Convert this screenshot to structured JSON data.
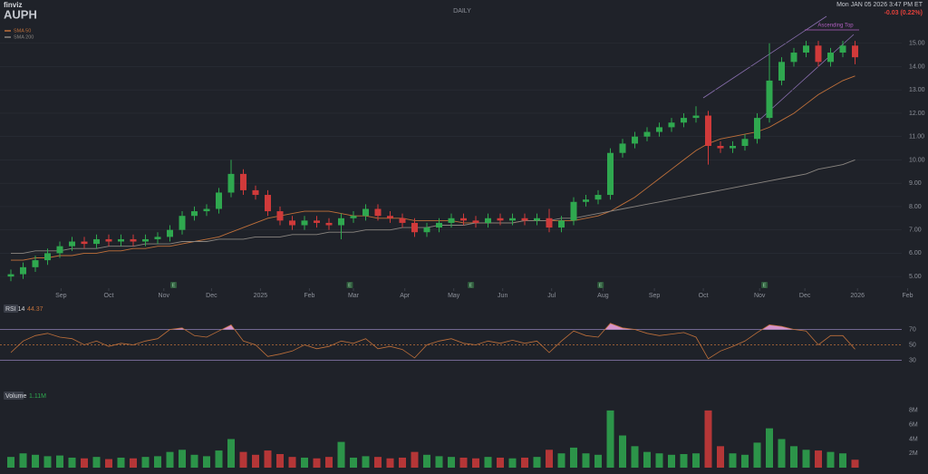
{
  "logo": "finviz",
  "timeframe": "DAILY",
  "datetime": "Mon JAN 05 2026 3:47 PM ET",
  "change": "-0.03 (0.22%)",
  "chart_data": [
    {
      "type": "candlestick",
      "title": "AUPH",
      "annotation": "Ascending Top",
      "up_color": "#2fa84f",
      "down_color": "#d03a3a",
      "grid": true,
      "xlim": [
        -0.5,
        74
      ],
      "xticks": [
        {
          "value": 4.1,
          "label": "Sep"
        },
        {
          "value": 8,
          "label": "Oct"
        },
        {
          "value": 12.5,
          "label": "Nov"
        },
        {
          "value": 16.4,
          "label": "Dec"
        },
        {
          "value": 20.4,
          "label": "2025"
        },
        {
          "value": 24.4,
          "label": "Feb"
        },
        {
          "value": 28,
          "label": "Mar"
        },
        {
          "value": 32.2,
          "label": "Apr"
        },
        {
          "value": 36.2,
          "label": "May"
        },
        {
          "value": 40.2,
          "label": "Jun"
        },
        {
          "value": 44.2,
          "label": "Jul"
        },
        {
          "value": 48.4,
          "label": "Aug"
        },
        {
          "value": 52.6,
          "label": "Sep"
        },
        {
          "value": 56.6,
          "label": "Oct"
        },
        {
          "value": 61.2,
          "label": "Nov"
        },
        {
          "value": 64.9,
          "label": "Dec"
        },
        {
          "value": 69.2,
          "label": "2026"
        },
        {
          "value": 73.3,
          "label": "Feb"
        }
      ],
      "ylim": [
        4.5,
        16
      ],
      "yticks": [
        {
          "value": 5,
          "label": "5.00"
        },
        {
          "value": 6,
          "label": "6.00"
        },
        {
          "value": 7,
          "label": "7.00"
        },
        {
          "value": 8,
          "label": "8.00"
        },
        {
          "value": 9,
          "label": "9.00"
        },
        {
          "value": 10,
          "label": "10.00"
        },
        {
          "value": 11,
          "label": "11.00"
        },
        {
          "value": 12,
          "label": "12.00"
        },
        {
          "value": 13,
          "label": "13.00"
        },
        {
          "value": 14,
          "label": "14.00"
        },
        {
          "value": 15,
          "label": "15.00"
        }
      ],
      "earnings": {
        "label": "E",
        "x": [
          13.3,
          27.7,
          37.6,
          48.2,
          61.6
        ]
      },
      "open": [
        5.0,
        5.1,
        5.4,
        5.7,
        6.0,
        6.3,
        6.5,
        6.4,
        6.6,
        6.5,
        6.6,
        6.5,
        6.6,
        6.7,
        7.0,
        7.6,
        7.8,
        7.9,
        8.6,
        9.4,
        8.7,
        8.5,
        7.8,
        7.4,
        7.2,
        7.4,
        7.3,
        7.2,
        7.5,
        7.6,
        7.9,
        7.6,
        7.5,
        7.3,
        6.9,
        7.1,
        7.3,
        7.5,
        7.4,
        7.3,
        7.5,
        7.4,
        7.5,
        7.4,
        7.5,
        7.1,
        7.4,
        8.2,
        8.3,
        8.5,
        10.3,
        10.7,
        11.0,
        11.2,
        11.4,
        11.6,
        11.8,
        11.9,
        10.6,
        10.5,
        10.6,
        10.9,
        11.8,
        13.4,
        14.2,
        14.6,
        14.9,
        14.2,
        14.6,
        14.9
      ],
      "high": [
        5.3,
        5.6,
        5.9,
        6.2,
        6.5,
        6.7,
        6.7,
        6.8,
        6.8,
        6.8,
        6.8,
        6.8,
        6.9,
        7.2,
        7.8,
        8.0,
        8.1,
        8.8,
        10.0,
        9.6,
        8.9,
        8.7,
        8.0,
        7.6,
        7.6,
        7.6,
        7.5,
        7.7,
        7.8,
        8.1,
        8.1,
        7.8,
        7.7,
        7.5,
        7.3,
        7.5,
        7.7,
        7.7,
        7.6,
        7.7,
        7.7,
        7.7,
        7.7,
        7.7,
        7.9,
        7.6,
        8.4,
        8.5,
        8.7,
        10.5,
        10.9,
        11.2,
        11.4,
        11.6,
        11.8,
        12.0,
        12.3,
        12.1,
        10.8,
        10.8,
        11.1,
        12.0,
        15.0,
        14.4,
        14.8,
        15.1,
        15.1,
        14.8,
        15.1,
        15.1
      ],
      "low": [
        4.8,
        4.9,
        5.2,
        5.5,
        5.8,
        6.1,
        6.2,
        6.2,
        6.3,
        6.3,
        6.3,
        6.3,
        6.4,
        6.5,
        6.8,
        7.4,
        7.6,
        7.7,
        8.4,
        8.5,
        8.3,
        7.6,
        7.2,
        7.0,
        7.0,
        7.1,
        7.0,
        6.6,
        7.3,
        7.4,
        7.4,
        7.3,
        7.1,
        6.7,
        6.7,
        6.9,
        7.1,
        7.2,
        7.1,
        7.1,
        7.2,
        7.2,
        7.2,
        7.2,
        6.9,
        6.9,
        7.2,
        8.0,
        8.1,
        8.3,
        10.1,
        10.5,
        10.8,
        11.0,
        11.2,
        11.4,
        11.6,
        9.8,
        10.3,
        10.3,
        10.4,
        10.7,
        11.6,
        13.2,
        14.0,
        14.4,
        14.0,
        14.0,
        14.4,
        14.1
      ],
      "close": [
        5.1,
        5.4,
        5.7,
        6.0,
        6.3,
        6.5,
        6.4,
        6.6,
        6.5,
        6.6,
        6.5,
        6.6,
        6.7,
        7.0,
        7.6,
        7.8,
        7.9,
        8.6,
        9.4,
        8.7,
        8.5,
        7.8,
        7.4,
        7.2,
        7.4,
        7.3,
        7.2,
        7.5,
        7.6,
        7.9,
        7.6,
        7.5,
        7.3,
        6.9,
        7.1,
        7.3,
        7.5,
        7.4,
        7.3,
        7.5,
        7.4,
        7.5,
        7.4,
        7.5,
        7.1,
        7.4,
        8.2,
        8.3,
        8.5,
        10.3,
        10.7,
        11.0,
        11.2,
        11.4,
        11.6,
        11.8,
        11.9,
        10.6,
        10.5,
        10.6,
        10.9,
        11.8,
        13.4,
        14.2,
        14.6,
        14.9,
        14.2,
        14.6,
        14.9,
        14.4
      ],
      "series": [
        {
          "name": "SMA 50",
          "color": "#c0703a",
          "values": [
            5.7,
            5.7,
            5.8,
            5.8,
            5.9,
            5.9,
            6.0,
            6.0,
            6.1,
            6.1,
            6.2,
            6.2,
            6.3,
            6.3,
            6.4,
            6.5,
            6.6,
            6.7,
            6.9,
            7.1,
            7.3,
            7.5,
            7.6,
            7.7,
            7.8,
            7.8,
            7.8,
            7.7,
            7.6,
            7.6,
            7.5,
            7.5,
            7.5,
            7.4,
            7.4,
            7.4,
            7.4,
            7.3,
            7.3,
            7.3,
            7.3,
            7.3,
            7.4,
            7.4,
            7.4,
            7.4,
            7.4,
            7.5,
            7.6,
            7.8,
            8.1,
            8.4,
            8.8,
            9.2,
            9.6,
            10.0,
            10.4,
            10.7,
            10.9,
            11.0,
            11.1,
            11.2,
            11.4,
            11.7,
            12.0,
            12.4,
            12.8,
            13.1,
            13.4,
            13.6
          ]
        },
        {
          "name": "SMA 200",
          "color": "#8a8580",
          "values": [
            6.0,
            6.0,
            6.1,
            6.1,
            6.1,
            6.2,
            6.2,
            6.2,
            6.3,
            6.3,
            6.3,
            6.4,
            6.4,
            6.4,
            6.5,
            6.5,
            6.5,
            6.6,
            6.6,
            6.6,
            6.7,
            6.7,
            6.7,
            6.8,
            6.8,
            6.8,
            6.9,
            6.9,
            6.9,
            7.0,
            7.0,
            7.0,
            7.1,
            7.1,
            7.1,
            7.2,
            7.2,
            7.2,
            7.3,
            7.3,
            7.3,
            7.3,
            7.4,
            7.4,
            7.4,
            7.5,
            7.5,
            7.6,
            7.7,
            7.8,
            7.9,
            8.0,
            8.1,
            8.2,
            8.3,
            8.4,
            8.5,
            8.6,
            8.7,
            8.8,
            8.9,
            9.0,
            9.1,
            9.2,
            9.3,
            9.4,
            9.6,
            9.7,
            9.8,
            10.0
          ]
        }
      ]
    },
    {
      "type": "line",
      "title": "RSI 14",
      "color": "#c0703a",
      "fill_color": "#e8a0dc",
      "xlim": [
        -0.5,
        74
      ],
      "ylim": [
        20,
        100
      ],
      "yticks": [
        30,
        50,
        70
      ],
      "values": [
        40,
        55,
        62,
        65,
        60,
        58,
        50,
        55,
        48,
        52,
        50,
        55,
        58,
        70,
        72,
        62,
        60,
        68,
        76,
        55,
        50,
        35,
        38,
        42,
        50,
        45,
        48,
        55,
        52,
        58,
        45,
        48,
        44,
        33,
        50,
        55,
        58,
        52,
        50,
        55,
        52,
        56,
        52,
        55,
        40,
        55,
        68,
        62,
        60,
        78,
        72,
        70,
        65,
        62,
        64,
        66,
        60,
        32,
        42,
        48,
        55,
        66,
        76,
        74,
        70,
        68,
        50,
        62,
        62,
        44.37
      ]
    },
    {
      "type": "bar",
      "title": "Volume",
      "value_label": "1.11M",
      "xlim": [
        -0.5,
        74
      ],
      "ylim": [
        0,
        9
      ],
      "yticks": [
        {
          "value": 2,
          "label": "2M"
        },
        {
          "value": 4,
          "label": "4M"
        },
        {
          "value": 6,
          "label": "6M"
        },
        {
          "value": 8,
          "label": "8M"
        }
      ],
      "values": [
        1.5,
        2.0,
        1.8,
        1.6,
        1.7,
        1.4,
        1.3,
        1.5,
        1.2,
        1.4,
        1.3,
        1.5,
        1.6,
        2.2,
        2.5,
        1.8,
        1.6,
        2.4,
        4.0,
        2.2,
        1.8,
        2.4,
        1.9,
        1.5,
        1.4,
        1.3,
        1.5,
        3.6,
        1.4,
        1.6,
        1.5,
        1.3,
        1.4,
        2.2,
        1.8,
        1.6,
        1.5,
        1.4,
        1.3,
        1.5,
        1.4,
        1.3,
        1.4,
        1.5,
        2.5,
        2.0,
        2.8,
        2.0,
        1.8,
        8.0,
        4.5,
        3.0,
        2.2,
        2.0,
        1.8,
        1.9,
        2.0,
        8.0,
        3.0,
        2.0,
        1.8,
        3.5,
        5.5,
        4.0,
        3.0,
        2.5,
        2.4,
        2.2,
        2.0,
        1.11
      ]
    }
  ]
}
